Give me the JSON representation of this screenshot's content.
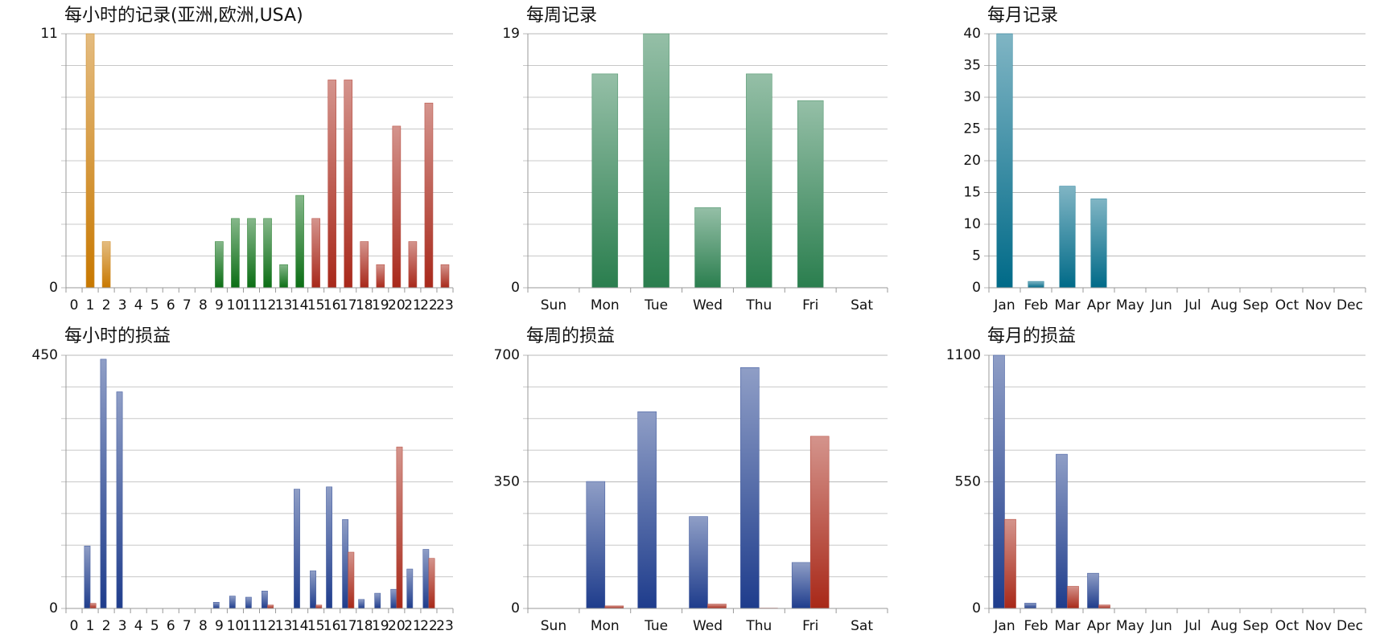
{
  "chart_data": [
    {
      "type": "bar",
      "title": "每小时的记录(亚洲,欧洲,USA)",
      "categories": [
        "0",
        "1",
        "2",
        "3",
        "4",
        "5",
        "6",
        "7",
        "8",
        "9",
        "10",
        "11",
        "12",
        "13",
        "14",
        "15",
        "16",
        "17",
        "18",
        "19",
        "20",
        "21",
        "22",
        "23"
      ],
      "series": [
        {
          "color": "#c87800",
          "values": [
            0,
            11,
            2,
            0,
            0,
            0,
            0,
            0,
            0,
            null,
            null,
            null,
            null,
            null,
            null,
            null,
            null,
            null,
            null,
            null,
            null,
            null,
            null,
            null
          ]
        },
        {
          "color": "#0b6e14",
          "values": [
            null,
            null,
            null,
            null,
            null,
            null,
            null,
            null,
            null,
            2,
            3,
            3,
            3,
            1,
            4,
            null,
            null,
            null,
            null,
            null,
            null,
            null,
            null,
            null
          ]
        },
        {
          "color": "#a8281a",
          "values": [
            null,
            null,
            null,
            null,
            null,
            null,
            null,
            null,
            null,
            null,
            null,
            null,
            null,
            null,
            null,
            3,
            9,
            9,
            2,
            1,
            7,
            2,
            8,
            1
          ]
        }
      ],
      "ylim": [
        0,
        11
      ],
      "yticks": [
        0,
        11
      ],
      "grid_divisions": 8
    },
    {
      "type": "bar",
      "title": "每周记录",
      "categories": [
        "Sun",
        "Mon",
        "Tue",
        "Wed",
        "Thu",
        "Fri",
        "Sat"
      ],
      "series": [
        {
          "color": "#2a7e4e",
          "values": [
            0,
            16,
            19,
            6,
            16,
            14,
            0
          ]
        }
      ],
      "ylim": [
        0,
        19
      ],
      "yticks": [
        0,
        19
      ],
      "grid_divisions": 8
    },
    {
      "type": "bar",
      "title": "每月记录",
      "categories": [
        "Jan",
        "Feb",
        "Mar",
        "Apr",
        "May",
        "Jun",
        "Jul",
        "Aug",
        "Sep",
        "Oct",
        "Nov",
        "Dec"
      ],
      "series": [
        {
          "color": "#006a88",
          "values": [
            40,
            1,
            16,
            14,
            0,
            0,
            0,
            0,
            0,
            0,
            0,
            0
          ]
        }
      ],
      "ylim": [
        0,
        40
      ],
      "yticks": [
        0,
        5,
        10,
        15,
        20,
        25,
        30,
        35,
        40
      ],
      "grid_divisions": 8
    },
    {
      "type": "bar",
      "title": "每小时的损益",
      "categories": [
        "0",
        "1",
        "2",
        "3",
        "4",
        "5",
        "6",
        "7",
        "8",
        "9",
        "10",
        "11",
        "12",
        "13",
        "14",
        "15",
        "16",
        "17",
        "18",
        "19",
        "20",
        "21",
        "22",
        "23"
      ],
      "series": [
        {
          "color": "#1e3c8c",
          "values": [
            0,
            111,
            443,
            385,
            0,
            0,
            0,
            0,
            0,
            11,
            22,
            20,
            31,
            0,
            212,
            67,
            216,
            158,
            16,
            27,
            34,
            70,
            105,
            0
          ]
        },
        {
          "color": "#a82818",
          "values": [
            0,
            9,
            0,
            0,
            0,
            0,
            0,
            0,
            0,
            0,
            0,
            0,
            6,
            0,
            0,
            6,
            0,
            100,
            0,
            0,
            287,
            0,
            89,
            0
          ]
        }
      ],
      "ylim": [
        0,
        450
      ],
      "yticks": [
        0,
        450
      ],
      "grid_divisions": 8
    },
    {
      "type": "bar",
      "title": "每周的损益",
      "categories": [
        "Sun",
        "Mon",
        "Tue",
        "Wed",
        "Thu",
        "Fri",
        "Sat"
      ],
      "series": [
        {
          "color": "#1e3c8c",
          "values": [
            0,
            351,
            544,
            254,
            666,
            127,
            0
          ]
        },
        {
          "color": "#a82818",
          "values": [
            0,
            7,
            0,
            12,
            1,
            476,
            0
          ]
        }
      ],
      "ylim": [
        0,
        700
      ],
      "yticks": [
        0,
        350,
        700
      ],
      "grid_divisions": 8
    },
    {
      "type": "bar",
      "title": "每月的损益",
      "categories": [
        "Jan",
        "Feb",
        "Mar",
        "Apr",
        "May",
        "Jun",
        "Jul",
        "Aug",
        "Sep",
        "Oct",
        "Nov",
        "Dec"
      ],
      "series": [
        {
          "color": "#1e3c8c",
          "values": [
            1100,
            23,
            670,
            153,
            0,
            0,
            0,
            0,
            0,
            0,
            0,
            0
          ]
        },
        {
          "color": "#a82818",
          "values": [
            387,
            0,
            96,
            15,
            0,
            0,
            0,
            0,
            0,
            0,
            0,
            0
          ]
        }
      ],
      "ylim": [
        0,
        1100
      ],
      "yticks": [
        0,
        550,
        1100
      ],
      "grid_divisions": 8
    }
  ]
}
